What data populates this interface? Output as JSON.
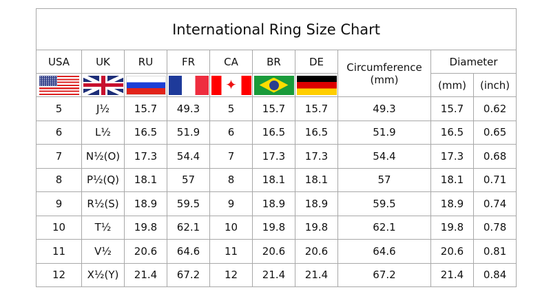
{
  "title": "International Ring Size Chart",
  "headers": {
    "usa": "USA",
    "uk": "UK",
    "ru": "RU",
    "fr": "FR",
    "ca": "CA",
    "br": "BR",
    "de": "DE",
    "circumference": "Circumference",
    "circumference_unit": "(mm)",
    "diameter": "Diameter",
    "diameter_mm": "(mm)",
    "diameter_inch": "(inch)"
  },
  "flags": [
    "us-flag",
    "uk-flag",
    "russia-flag",
    "france-flag",
    "canada-flag",
    "brazil-flag",
    "germany-flag"
  ],
  "rows": [
    [
      "5",
      "J½",
      "15.7",
      "49.3",
      "5",
      "15.7",
      "15.7",
      "49.3",
      "15.7",
      "0.62"
    ],
    [
      "6",
      "L½",
      "16.5",
      "51.9",
      "6",
      "16.5",
      "16.5",
      "51.9",
      "16.5",
      "0.65"
    ],
    [
      "7",
      "N½(O)",
      "17.3",
      "54.4",
      "7",
      "17.3",
      "17.3",
      "54.4",
      "17.3",
      "0.68"
    ],
    [
      "8",
      "P½(Q)",
      "18.1",
      "57",
      "8",
      "18.1",
      "18.1",
      "57",
      "18.1",
      "0.71"
    ],
    [
      "9",
      "R½(S)",
      "18.9",
      "59.5",
      "9",
      "18.9",
      "18.9",
      "59.5",
      "18.9",
      "0.74"
    ],
    [
      "10",
      "T½",
      "19.8",
      "62.1",
      "10",
      "19.8",
      "19.8",
      "62.1",
      "19.8",
      "0.78"
    ],
    [
      "11",
      "V½",
      "20.6",
      "64.6",
      "11",
      "20.6",
      "20.6",
      "64.6",
      "20.6",
      "0.81"
    ],
    [
      "12",
      "X½(Y)",
      "21.4",
      "67.2",
      "12",
      "21.4",
      "21.4",
      "67.2",
      "21.4",
      "0.84"
    ]
  ],
  "chart_data": {
    "type": "table",
    "title": "International Ring Size Chart",
    "columns": [
      "USA",
      "UK",
      "RU",
      "FR",
      "CA",
      "BR",
      "DE",
      "Circumference (mm)",
      "Diameter (mm)",
      "Diameter (inch)"
    ]
  }
}
